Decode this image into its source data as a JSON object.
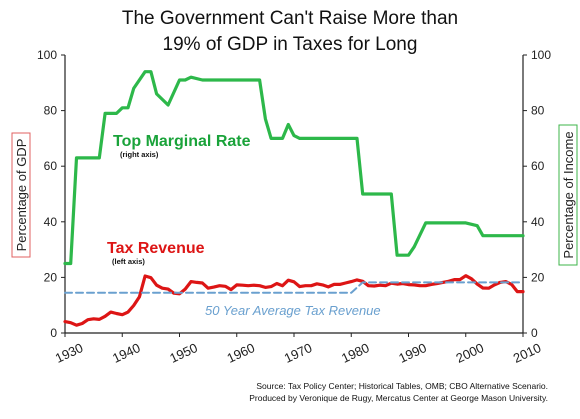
{
  "chart_data": {
    "type": "line",
    "title": "The Government Can't Raise More than 19% of GDP in Taxes for Long",
    "title_lines": [
      "The Government Can't Raise More than",
      "19% of GDP in Taxes for Long"
    ],
    "ylabel_left": "Percentage of GDP",
    "ylabel_right": "Percentage of Income",
    "xlim": [
      1930,
      2010
    ],
    "ylim": [
      0,
      100
    ],
    "x_ticks": [
      "1930",
      "1940",
      "1950",
      "1960",
      "1970",
      "1980",
      "1990",
      "2000",
      "2010"
    ],
    "y_ticks": [
      "0",
      "20",
      "40",
      "60",
      "80",
      "100"
    ],
    "series": [
      {
        "name": "Top Marginal Rate",
        "axis_note": "(right axis)",
        "color": "#2db84a",
        "x": [
          1930,
          1931,
          1932,
          1936,
          1937,
          1939,
          1940,
          1941,
          1942,
          1944,
          1945,
          1946,
          1948,
          1950,
          1951,
          1952,
          1954,
          1964,
          1965,
          1966,
          1968,
          1969,
          1970,
          1971,
          1981,
          1982,
          1987,
          1988,
          1990,
          1991,
          1993,
          2000,
          2001,
          2002,
          2003,
          2010
        ],
        "y": [
          25,
          25,
          63,
          63,
          79,
          79,
          81,
          81,
          88,
          94,
          94,
          86,
          82,
          91,
          91,
          92,
          91,
          91,
          77,
          70,
          70,
          75,
          71,
          70,
          70,
          50,
          50,
          28,
          28,
          31,
          39.6,
          39.6,
          39.1,
          38.6,
          35,
          35
        ]
      },
      {
        "name": "Tax Revenue",
        "axis_note": "(left axis)",
        "color": "#dd1515",
        "x": [
          1930,
          1931,
          1932,
          1933,
          1934,
          1935,
          1936,
          1937,
          1938,
          1939,
          1940,
          1941,
          1942,
          1943,
          1944,
          1945,
          1946,
          1947,
          1948,
          1949,
          1950,
          1951,
          1952,
          1953,
          1954,
          1955,
          1956,
          1957,
          1958,
          1959,
          1960,
          1961,
          1962,
          1963,
          1964,
          1965,
          1966,
          1967,
          1968,
          1969,
          1970,
          1971,
          1972,
          1973,
          1974,
          1975,
          1976,
          1977,
          1978,
          1979,
          1980,
          1981,
          1982,
          1983,
          1984,
          1985,
          1986,
          1987,
          1988,
          1989,
          1990,
          1991,
          1992,
          1993,
          1994,
          1995,
          1996,
          1997,
          1998,
          1999,
          2000,
          2001,
          2002,
          2003,
          2004,
          2005,
          2006,
          2007,
          2008,
          2009,
          2010
        ],
        "y": [
          4.1,
          3.7,
          2.8,
          3.4,
          4.8,
          5.1,
          4.9,
          6,
          7.5,
          7,
          6.6,
          7.5,
          9.9,
          13,
          20.5,
          19.9,
          17.2,
          16.1,
          15.8,
          14.3,
          14.1,
          15.8,
          18.5,
          18.2,
          18,
          16.1,
          16.5,
          17,
          16.8,
          15.6,
          17.3,
          17.2,
          17,
          17.2,
          17,
          16.4,
          16.7,
          17.8,
          17,
          19,
          18.4,
          16.7,
          17,
          17,
          17.7,
          17.3,
          16.6,
          17.5,
          17.5,
          18,
          18.5,
          19.1,
          18.6,
          17,
          16.9,
          17.2,
          17,
          17.9,
          17.6,
          17.8,
          17.4,
          17.3,
          17,
          17,
          17.5,
          17.8,
          18.2,
          18.6,
          19.2,
          19.2,
          20.6,
          19.5,
          17.6,
          16.2,
          16.1,
          17.3,
          18.2,
          18.5,
          17.5,
          14.9,
          14.9
        ]
      },
      {
        "name": "50 Year Average Tax Revenue",
        "color": "#6aa0cf",
        "dashed": true,
        "x": [
          1930,
          1980,
          1982,
          2010
        ],
        "y": [
          14.5,
          14.5,
          18.2,
          18.2
        ]
      }
    ],
    "source_lines": [
      "Source: Tax Policy Center; Historical Tables, OMB; CBO Alternative Scenario.",
      "Produced by Veronique de Rugy, Mercatus Center at George Mason University."
    ]
  }
}
